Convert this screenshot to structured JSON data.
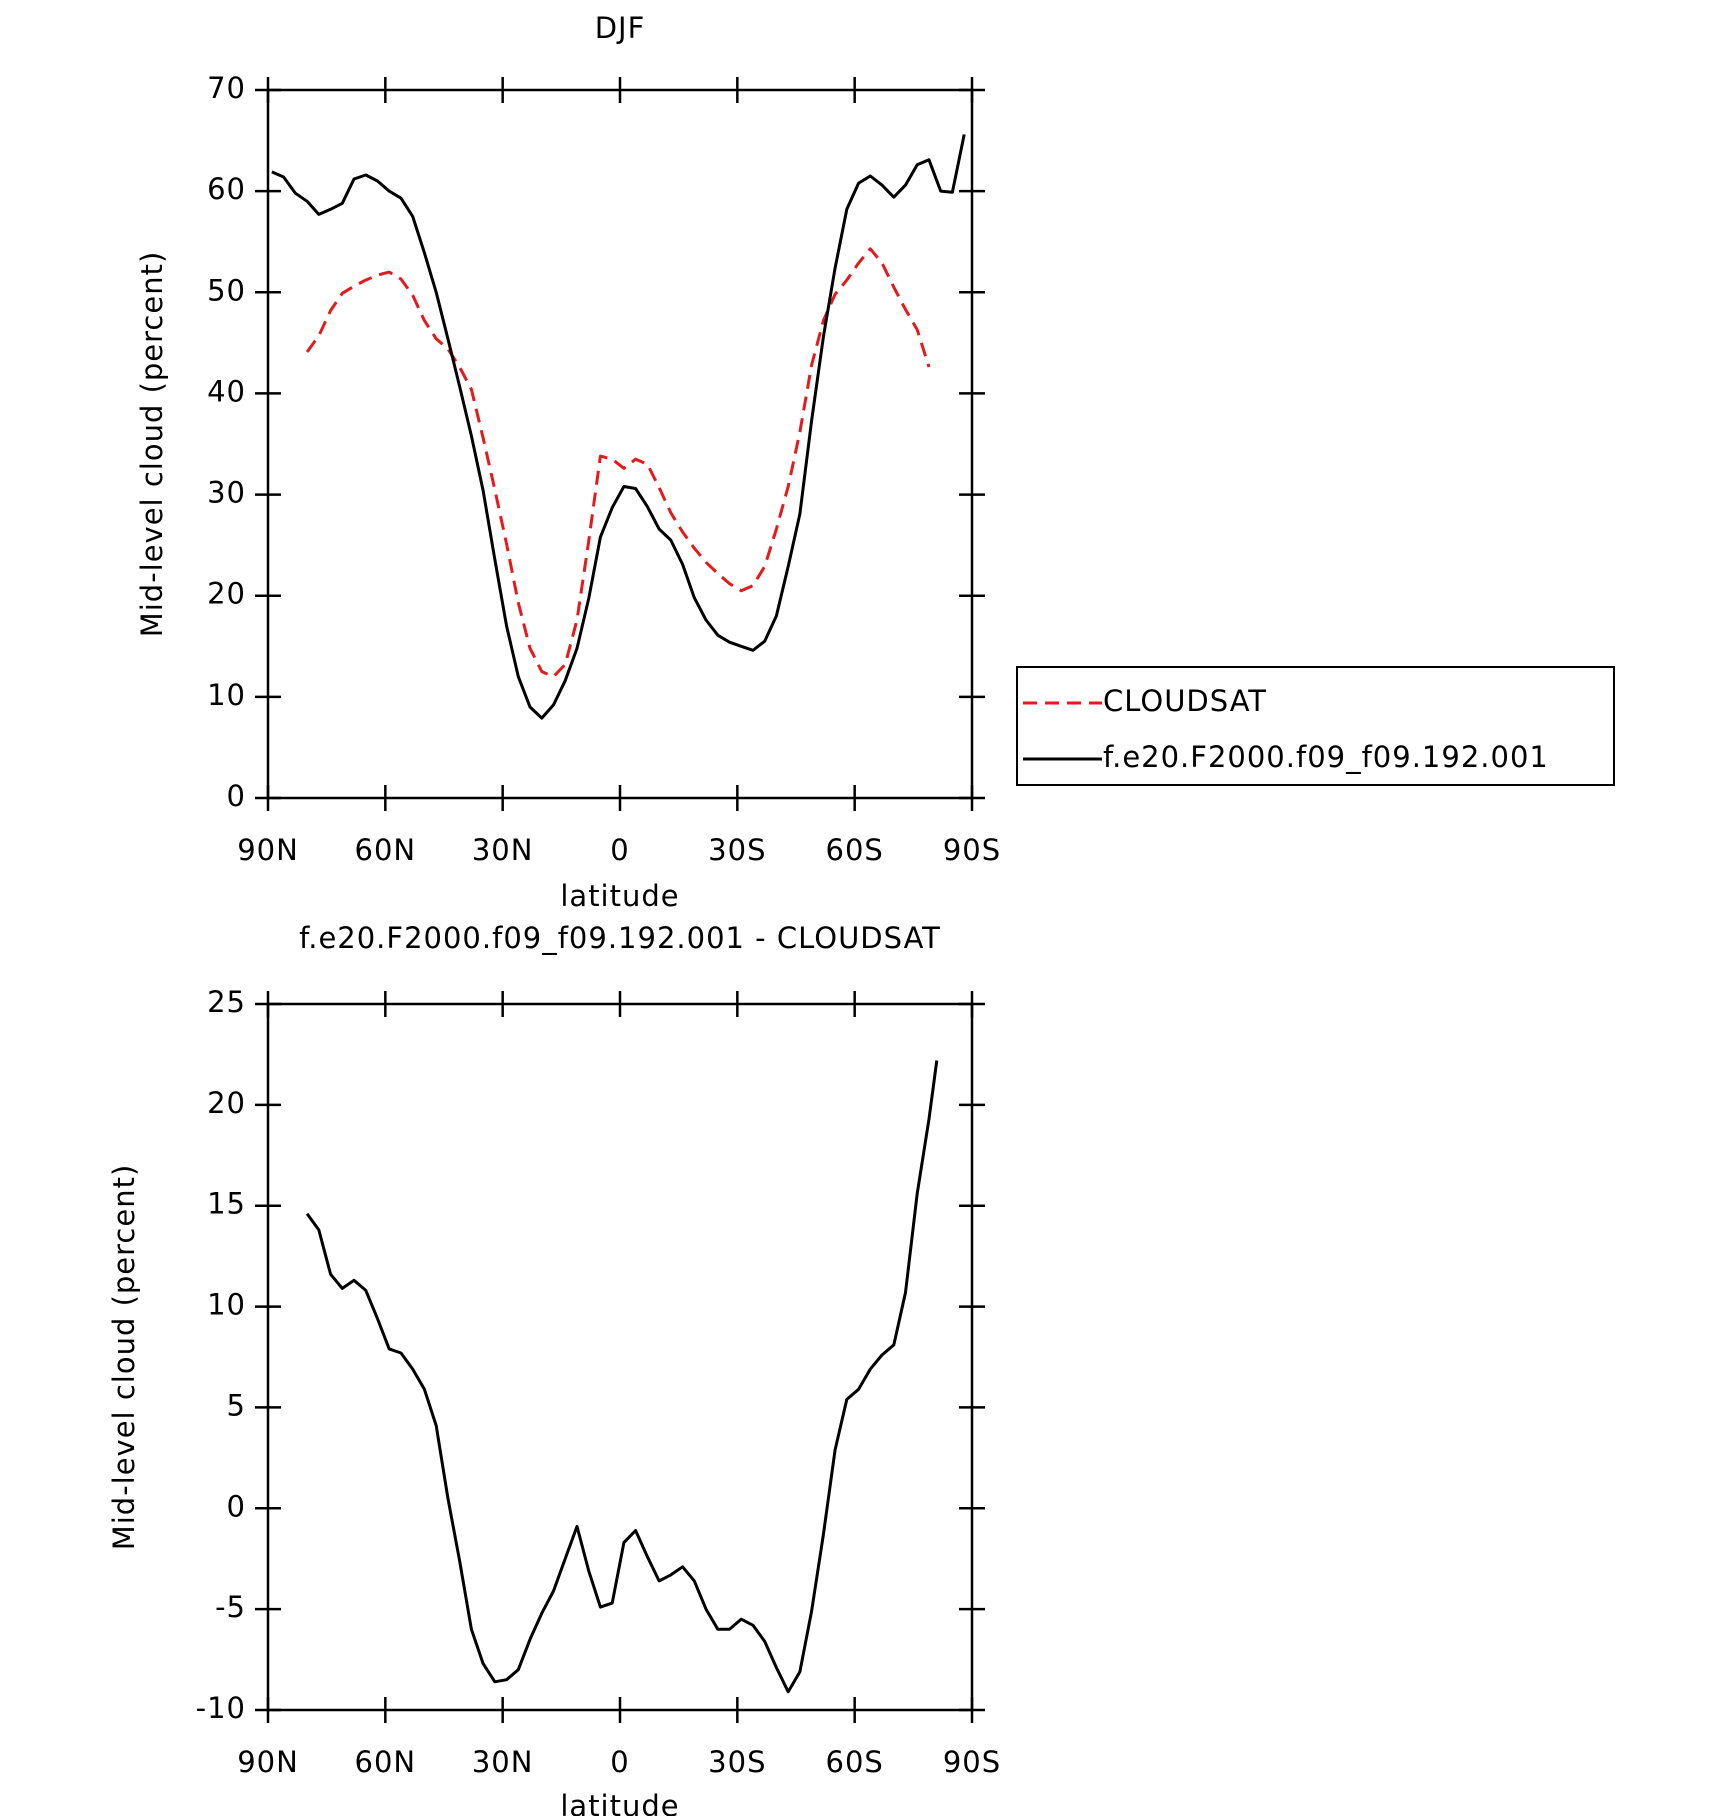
{
  "chart_data": [
    {
      "type": "line",
      "title": "DJF",
      "x_label": "latitude",
      "y_label": "Mid-level cloud (percent)",
      "x": [
        89,
        86,
        83,
        80,
        77,
        74,
        71,
        68,
        65,
        62,
        59,
        56,
        53,
        50,
        47,
        44,
        41,
        38,
        35,
        32,
        29,
        26,
        23,
        20,
        17,
        14,
        11,
        8,
        5,
        2,
        -1,
        -4,
        -7,
        -10,
        -13,
        -16,
        -19,
        -22,
        -25,
        -28,
        -31,
        -34,
        -37,
        -40,
        -43,
        -46,
        -49,
        -52,
        -55,
        -58,
        -61,
        -64,
        -67,
        -70,
        -73,
        -76,
        -79,
        -82,
        -85,
        -88
      ],
      "series": [
        {
          "name": "CLOUDSAT",
          "color": "#e41a1c",
          "line_style": "dashed",
          "values": [
            null,
            null,
            null,
            44.1,
            45.7,
            48.2,
            49.9,
            50.6,
            51.2,
            51.7,
            52.0,
            51.3,
            49.7,
            47.2,
            45.4,
            44.4,
            42.6,
            40.4,
            35.6,
            30.5,
            25.1,
            19.3,
            14.8,
            12.5,
            12.0,
            13.2,
            17.6,
            25.4,
            33.8,
            33.5,
            32.6,
            33.5,
            33.0,
            30.7,
            28.2,
            26.3,
            24.7,
            23.3,
            22.2,
            21.2,
            20.5,
            21.0,
            22.9,
            26.6,
            30.8,
            36.2,
            42.8,
            47.2,
            49.8,
            51.2,
            52.9,
            54.3,
            52.9,
            50.5,
            48.3,
            46.3,
            42.6,
            null,
            null,
            null
          ]
        },
        {
          "name": "f.e20.F2000.f09_f09.192.001",
          "color": "#000000",
          "line_style": "solid",
          "values": [
            61.9,
            61.4,
            59.8,
            59.0,
            57.7,
            58.2,
            58.8,
            61.2,
            61.6,
            61.0,
            60.0,
            59.3,
            57.5,
            53.9,
            50.0,
            45.4,
            40.7,
            35.8,
            30.4,
            23.6,
            17.0,
            12.0,
            9.0,
            7.9,
            9.2,
            11.6,
            14.8,
            19.7,
            25.8,
            28.7,
            30.8,
            30.6,
            28.8,
            26.6,
            25.5,
            23.1,
            19.8,
            17.6,
            16.1,
            15.4,
            15.0,
            14.6,
            15.5,
            18.0,
            22.9,
            28.1,
            37.3,
            45.6,
            52.4,
            58.2,
            60.8,
            61.5,
            60.6,
            59.4,
            60.6,
            62.6,
            63.1,
            60.0,
            59.9,
            65.6
          ]
        }
      ],
      "xlim": [
        90,
        -90
      ],
      "xticks": [
        {
          "value": 90,
          "label": "90N"
        },
        {
          "value": 60,
          "label": "60N"
        },
        {
          "value": 30,
          "label": "30N"
        },
        0,
        {
          "value": -30,
          "label": "30S"
        },
        {
          "value": -60,
          "label": "60S"
        },
        {
          "value": -90,
          "label": "90S"
        }
      ],
      "ylim": [
        0,
        70
      ],
      "yticks": [
        0,
        10,
        20,
        30,
        40,
        50,
        60,
        70
      ],
      "legend": "right"
    },
    {
      "type": "line",
      "title": "f.e20.F2000.f09_f09.192.001 - CLOUDSAT",
      "x_label": "latitude",
      "y_label": "Mid-level cloud (percent)",
      "x": [
        80,
        77,
        74,
        71,
        68,
        65,
        62,
        59,
        56,
        53,
        50,
        47,
        44,
        41,
        38,
        35,
        32,
        29,
        26,
        23,
        20,
        17,
        14,
        11,
        8,
        5,
        2,
        -1,
        -4,
        -7,
        -10,
        -13,
        -16,
        -19,
        -22,
        -25,
        -28,
        -31,
        -34,
        -37,
        -40,
        -43,
        -46,
        -49,
        -52,
        -55,
        -58,
        -61,
        -64,
        -67,
        -70,
        -73,
        -76,
        -79,
        -81
      ],
      "values": [
        14.6,
        13.8,
        11.6,
        10.9,
        11.3,
        10.8,
        9.4,
        7.9,
        7.7,
        6.9,
        5.9,
        4.1,
        0.5,
        -2.6,
        -6.0,
        -7.7,
        -8.6,
        -8.5,
        -8.0,
        -6.5,
        -5.2,
        -4.1,
        -2.5,
        -0.9,
        -3.1,
        -4.9,
        -4.7,
        -1.7,
        -1.1,
        -2.4,
        -3.6,
        -3.3,
        -2.9,
        -3.6,
        -5.0,
        -6.0,
        -6.0,
        -5.5,
        -5.8,
        -6.6,
        -7.9,
        -9.1,
        -8.1,
        -5.1,
        -1.3,
        2.9,
        5.4,
        5.9,
        6.9,
        7.6,
        8.1,
        10.7,
        15.6,
        19.3,
        22.2
      ],
      "color": "#000000",
      "xlim": [
        90,
        -90
      ],
      "xticks": [
        {
          "value": 90,
          "label": "90N"
        },
        {
          "value": 60,
          "label": "60N"
        },
        {
          "value": 30,
          "label": "30N"
        },
        0,
        {
          "value": -30,
          "label": "30S"
        },
        {
          "value": -60,
          "label": "60S"
        },
        {
          "value": -90,
          "label": "90S"
        }
      ],
      "ylim": [
        -10,
        25
      ],
      "yticks": [
        -10,
        -5,
        0,
        5,
        10,
        15,
        20,
        25
      ]
    }
  ]
}
